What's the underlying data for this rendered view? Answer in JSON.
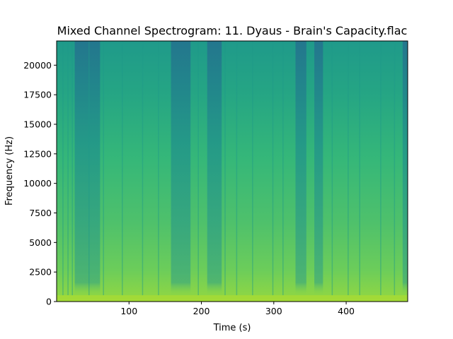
{
  "chart_data": {
    "type": "heatmap",
    "title": "Mixed Channel Spectrogram: 11. Dyaus - Brain's Capacity.flac",
    "xlabel": "Time (s)",
    "ylabel": "Frequency (Hz)",
    "xlim": [
      0,
      485
    ],
    "ylim": [
      0,
      22050
    ],
    "x_ticks": [
      100,
      200,
      300,
      400
    ],
    "x_tick_labels": [
      "100",
      "200",
      "300",
      "400"
    ],
    "y_ticks": [
      0,
      2500,
      5000,
      7500,
      10000,
      12500,
      15000,
      17500,
      20000
    ],
    "y_tick_labels": [
      "0",
      "2500",
      "5000",
      "7500",
      "10000",
      "12500",
      "15000",
      "17500",
      "20000"
    ],
    "colormap": "viridis",
    "grid": false,
    "quiet_sections_s": [
      [
        25,
        60
      ],
      [
        158,
        185
      ],
      [
        208,
        228
      ],
      [
        330,
        345
      ],
      [
        356,
        368
      ],
      [
        478,
        485
      ]
    ],
    "colors": {
      "high": "#9bd93c",
      "mid": "#3bbb75",
      "low": "#1f9a8a",
      "lowest": "#2a788e"
    }
  }
}
